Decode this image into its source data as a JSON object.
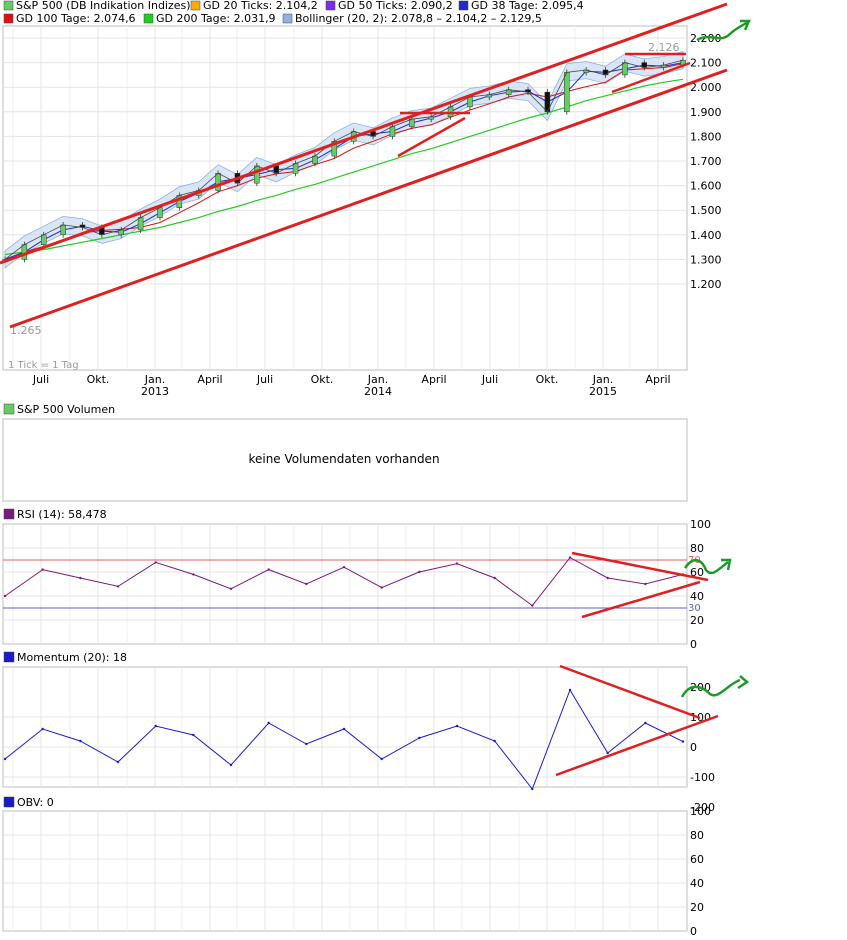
{
  "legend": {
    "items": [
      {
        "label": "S&P 500 (DB Indikation Indizes)",
        "color": "#66cc66"
      },
      {
        "label": "GD 20 Ticks: 2.104,2",
        "color": "#ffaa00"
      },
      {
        "label": "GD 50 Ticks: 2.090,2",
        "color": "#7b2cf0"
      },
      {
        "label": "GD 38 Tage: 2.095,4",
        "color": "#1f2ad0"
      },
      {
        "label": "GD 100 Tage: 2.074,6",
        "color": "#dd1111"
      },
      {
        "label": "GD 200 Tage: 2.031,9",
        "color": "#22cc22"
      },
      {
        "label": "Bollinger (20, 2): 2.078,8 – 2.104,2 – 2.129,5",
        "color": "#8fb3dd"
      }
    ]
  },
  "price_panel": {
    "y_ticks": [
      "2.200",
      "2.100",
      "2.000",
      "1.900",
      "1.800",
      "1.700",
      "1.600",
      "1.500",
      "1.400",
      "1.300",
      "1.200"
    ],
    "x_months": [
      "Juli",
      "Okt.",
      "Jan.",
      "April",
      "Juli",
      "Okt.",
      "Jan.",
      "April",
      "Juli",
      "Okt.",
      "Jan.",
      "April"
    ],
    "x_years": [
      "2013",
      "2014",
      "2015"
    ],
    "tick_note": "1 Tick = 1 Tag",
    "high_label": "2.126",
    "low_label": "1.265"
  },
  "volume_panel": {
    "legend": "S&P 500 Volumen",
    "message": "keine Volumendaten vorhanden"
  },
  "rsi_panel": {
    "legend": "RSI (14): 58,478",
    "y_ticks": [
      "100",
      "80",
      "60",
      "40",
      "20",
      "0"
    ],
    "ref_labels": [
      "70",
      "30"
    ]
  },
  "momentum_panel": {
    "legend": "Momentum (20): 18",
    "y_ticks": [
      "200",
      "100",
      "0",
      "-100",
      "-200"
    ]
  },
  "obv_panel": {
    "legend": "OBV: 0",
    "y_ticks": [
      "100",
      "80",
      "60",
      "40",
      "20",
      "0"
    ]
  },
  "chart_data": [
    {
      "type": "line",
      "panel": "S&P 500 price",
      "title": "S&P 500 (DB Indikation Indizes)",
      "ylim": [
        1150,
        2250
      ],
      "x": [
        "2012-06",
        "2012-07",
        "2012-08",
        "2012-09",
        "2012-10",
        "2012-11",
        "2012-12",
        "2013-01",
        "2013-02",
        "2013-03",
        "2013-04",
        "2013-05",
        "2013-06",
        "2013-07",
        "2013-08",
        "2013-09",
        "2013-10",
        "2013-11",
        "2013-12",
        "2014-01",
        "2014-02",
        "2014-03",
        "2014-04",
        "2014-05",
        "2014-06",
        "2014-07",
        "2014-08",
        "2014-09",
        "2014-10",
        "2014-11",
        "2014-12",
        "2015-01",
        "2015-02",
        "2015-03",
        "2015-04",
        "2015-05"
      ],
      "series": [
        {
          "name": "S&P 500 (DB Indikation Indizes)",
          "values": [
            1300,
            1360,
            1400,
            1440,
            1430,
            1400,
            1420,
            1470,
            1510,
            1560,
            1580,
            1650,
            1610,
            1680,
            1650,
            1690,
            1720,
            1780,
            1820,
            1800,
            1840,
            1870,
            1880,
            1920,
            1960,
            1970,
            1990,
            1980,
            1900,
            2060,
            2070,
            2050,
            2100,
            2080,
            2090,
            2110
          ]
        },
        {
          "name": "GD 200 Tage: 2.031,9",
          "values": [
            1320,
            1330,
            1340,
            1355,
            1370,
            1385,
            1400,
            1415,
            1430,
            1450,
            1470,
            1495,
            1515,
            1540,
            1560,
            1585,
            1605,
            1630,
            1655,
            1680,
            1705,
            1730,
            1750,
            1775,
            1800,
            1825,
            1850,
            1875,
            1895,
            1920,
            1945,
            1965,
            1985,
            2005,
            2020,
            2032
          ]
        }
      ],
      "annotations": {
        "high": "2.126",
        "low": "1.265"
      }
    },
    {
      "type": "line",
      "panel": "RSI",
      "title": "RSI (14): 58,478",
      "ylim": [
        0,
        100
      ],
      "reference_lines": [
        70,
        30
      ],
      "x": [
        "2012-06",
        "2012-08",
        "2012-10",
        "2012-12",
        "2013-02",
        "2013-04",
        "2013-06",
        "2013-08",
        "2013-10",
        "2013-12",
        "2014-02",
        "2014-04",
        "2014-06",
        "2014-08",
        "2014-10",
        "2014-12",
        "2015-02",
        "2015-04",
        "2015-05"
      ],
      "series": [
        {
          "name": "RSI (14)",
          "values": [
            40,
            62,
            55,
            48,
            68,
            58,
            46,
            62,
            50,
            64,
            47,
            60,
            67,
            55,
            32,
            72,
            55,
            50,
            58
          ]
        }
      ]
    },
    {
      "type": "line",
      "panel": "Momentum",
      "title": "Momentum (20): 18",
      "ylim": [
        -200,
        200
      ],
      "x": [
        "2012-06",
        "2012-08",
        "2012-10",
        "2012-12",
        "2013-02",
        "2013-04",
        "2013-06",
        "2013-08",
        "2013-10",
        "2013-12",
        "2014-02",
        "2014-04",
        "2014-06",
        "2014-08",
        "2014-10",
        "2014-12",
        "2015-02",
        "2015-04",
        "2015-05"
      ],
      "series": [
        {
          "name": "Momentum (20)",
          "values": [
            -40,
            60,
            20,
            -50,
            70,
            40,
            -60,
            80,
            10,
            60,
            -40,
            30,
            70,
            20,
            -140,
            190,
            -20,
            80,
            18
          ]
        }
      ]
    }
  ]
}
